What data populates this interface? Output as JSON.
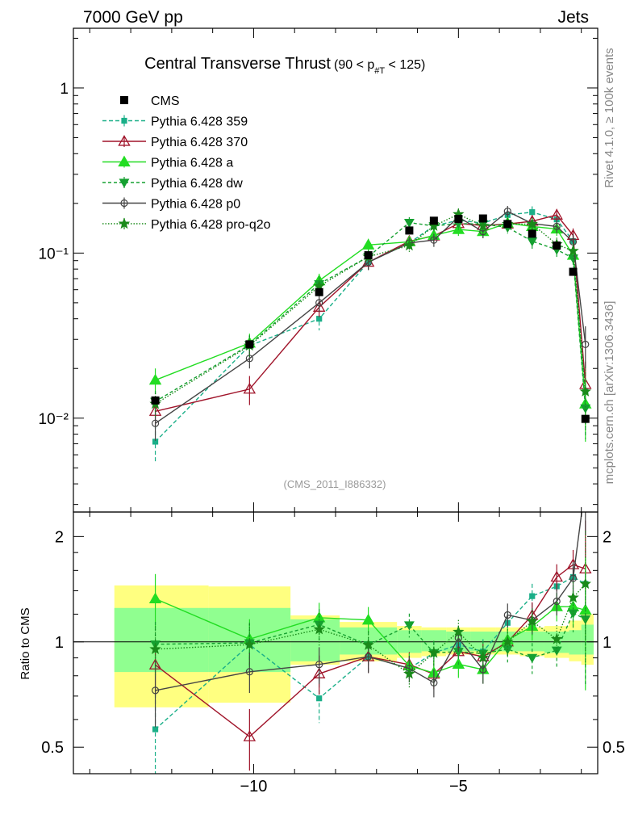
{
  "header": {
    "left": "7000 GeV pp",
    "right": "Jets"
  },
  "side": {
    "top": "Rivet 4.1.0, ≥ 100k events",
    "bottom": "mcplots.cern.ch [arXiv:1306.3436]"
  },
  "chart_data": {
    "type": "line",
    "title": "Central Transverse Thrust",
    "title_suffix": "(90 < p",
    "title_sub": "#T",
    "title_end": " < 125)",
    "watermark": "(CMS_2011_I886332)",
    "ratio_ylabel": "Ratio to CMS",
    "xlim": [
      -14.4,
      -1.6
    ],
    "ylim_main": [
      0.0027,
      2.3
    ],
    "ylim_ratio": [
      0.42,
      2.35
    ],
    "x_ticks": [
      -10,
      -5
    ],
    "x_tick_labels": [
      "−10",
      "−5"
    ],
    "y_ticks_main": [
      "1",
      "10⁻¹",
      "10⁻²"
    ],
    "y_ticks_ratio": [
      "2",
      "1",
      "0.5"
    ],
    "x": [
      -12.4,
      -10.1,
      -8.4,
      -7.2,
      -6.2,
      -5.6,
      -5.0,
      -4.4,
      -3.8,
      -3.2,
      -2.6,
      -2.2,
      -1.9
    ],
    "band_edges": [
      -13.4,
      -11.1,
      -9.1,
      -7.9,
      -6.5,
      -5.9,
      -5.3,
      -4.7,
      -4.1,
      -3.5,
      -2.9,
      -2.3,
      -2.0,
      -1.7
    ],
    "band_inner": [
      [
        0.82,
        1.25
      ],
      [
        0.82,
        1.25
      ],
      [
        0.88,
        1.16
      ],
      [
        0.92,
        1.1
      ],
      [
        0.93,
        1.08
      ],
      [
        0.94,
        1.08
      ],
      [
        0.94,
        1.07
      ],
      [
        0.94,
        1.07
      ],
      [
        0.94,
        1.07
      ],
      [
        0.94,
        1.07
      ],
      [
        0.93,
        1.07
      ],
      [
        0.92,
        1.08
      ],
      [
        0.92,
        1.12
      ]
    ],
    "band_outer": [
      [
        0.65,
        1.45
      ],
      [
        0.67,
        1.44
      ],
      [
        0.86,
        1.19
      ],
      [
        0.88,
        1.14
      ],
      [
        0.9,
        1.11
      ],
      [
        0.91,
        1.1
      ],
      [
        0.92,
        1.1
      ],
      [
        0.92,
        1.1
      ],
      [
        0.92,
        1.1
      ],
      [
        0.91,
        1.1
      ],
      [
        0.9,
        1.11
      ],
      [
        0.88,
        1.15
      ],
      [
        0.86,
        1.2
      ]
    ],
    "data": {
      "name": "CMS",
      "values": [
        0.0128,
        0.028,
        0.058,
        0.097,
        0.137,
        0.157,
        0.161,
        0.162,
        0.15,
        0.131,
        0.111,
        0.077,
        0.0099
      ]
    },
    "series": [
      {
        "name": "Pythia 6.428 359",
        "color": "#1aaf88",
        "dash": "5,3",
        "marker": "square",
        "open": false,
        "values": [
          0.0072,
          0.0275,
          0.04,
          0.088,
          0.115,
          0.146,
          0.158,
          0.152,
          0.17,
          0.177,
          0.16,
          0.118,
          0.0145
        ],
        "errors": [
          0.0019,
          0.004,
          0.006,
          0.009,
          0.01,
          0.012,
          0.013,
          0.013,
          0.014,
          0.015,
          0.014,
          0.014,
          0.0045
        ]
      },
      {
        "name": "Pythia 6.428 370",
        "color": "#a0142a",
        "dash": "",
        "marker": "triangle",
        "open": true,
        "values": [
          0.011,
          0.015,
          0.047,
          0.088,
          0.118,
          0.127,
          0.151,
          0.147,
          0.15,
          0.156,
          0.17,
          0.128,
          0.016
        ],
        "errors": [
          0.002,
          0.003,
          0.006,
          0.009,
          0.01,
          0.012,
          0.013,
          0.013,
          0.013,
          0.014,
          0.015,
          0.013,
          0.006
        ]
      },
      {
        "name": "Pythia 6.428 a",
        "color": "#22dd22",
        "dash": "",
        "marker": "triangle",
        "open": false,
        "values": [
          0.017,
          0.0285,
          0.068,
          0.112,
          0.117,
          0.128,
          0.139,
          0.135,
          0.152,
          0.145,
          0.14,
          0.097,
          0.0122
        ],
        "errors": [
          0.003,
          0.004,
          0.007,
          0.01,
          0.01,
          0.011,
          0.012,
          0.012,
          0.013,
          0.013,
          0.013,
          0.011,
          0.005
        ]
      },
      {
        "name": "Pythia 6.428 dw",
        "color": "#15a030",
        "dash": "4,3",
        "marker": "triangle-down",
        "open": false,
        "values": [
          0.0126,
          0.0278,
          0.065,
          0.095,
          0.153,
          0.146,
          0.151,
          0.15,
          0.143,
          0.118,
          0.105,
          0.093,
          0.0115
        ],
        "errors": [
          0.002,
          0.004,
          0.007,
          0.009,
          0.012,
          0.012,
          0.013,
          0.013,
          0.012,
          0.012,
          0.011,
          0.011,
          0.004
        ]
      },
      {
        "name": "Pythia 6.428 p0",
        "color": "#444444",
        "dash": "",
        "marker": "circle",
        "open": true,
        "values": [
          0.0093,
          0.023,
          0.05,
          0.088,
          0.115,
          0.12,
          0.165,
          0.135,
          0.179,
          0.151,
          0.145,
          0.117,
          0.028
        ],
        "errors": [
          0.002,
          0.003,
          0.006,
          0.009,
          0.01,
          0.011,
          0.014,
          0.012,
          0.014,
          0.013,
          0.013,
          0.013,
          0.008
        ]
      },
      {
        "name": "Pythia 6.428 pro-q2o",
        "color": "#1a8a1a",
        "dash": "1.5,2",
        "marker": "star",
        "open": false,
        "values": [
          0.0122,
          0.0275,
          0.063,
          0.095,
          0.111,
          0.146,
          0.172,
          0.146,
          0.15,
          0.15,
          0.113,
          0.103,
          0.0145
        ],
        "errors": [
          0.002,
          0.004,
          0.007,
          0.009,
          0.01,
          0.012,
          0.014,
          0.012,
          0.013,
          0.013,
          0.011,
          0.011,
          0.006
        ]
      }
    ]
  }
}
